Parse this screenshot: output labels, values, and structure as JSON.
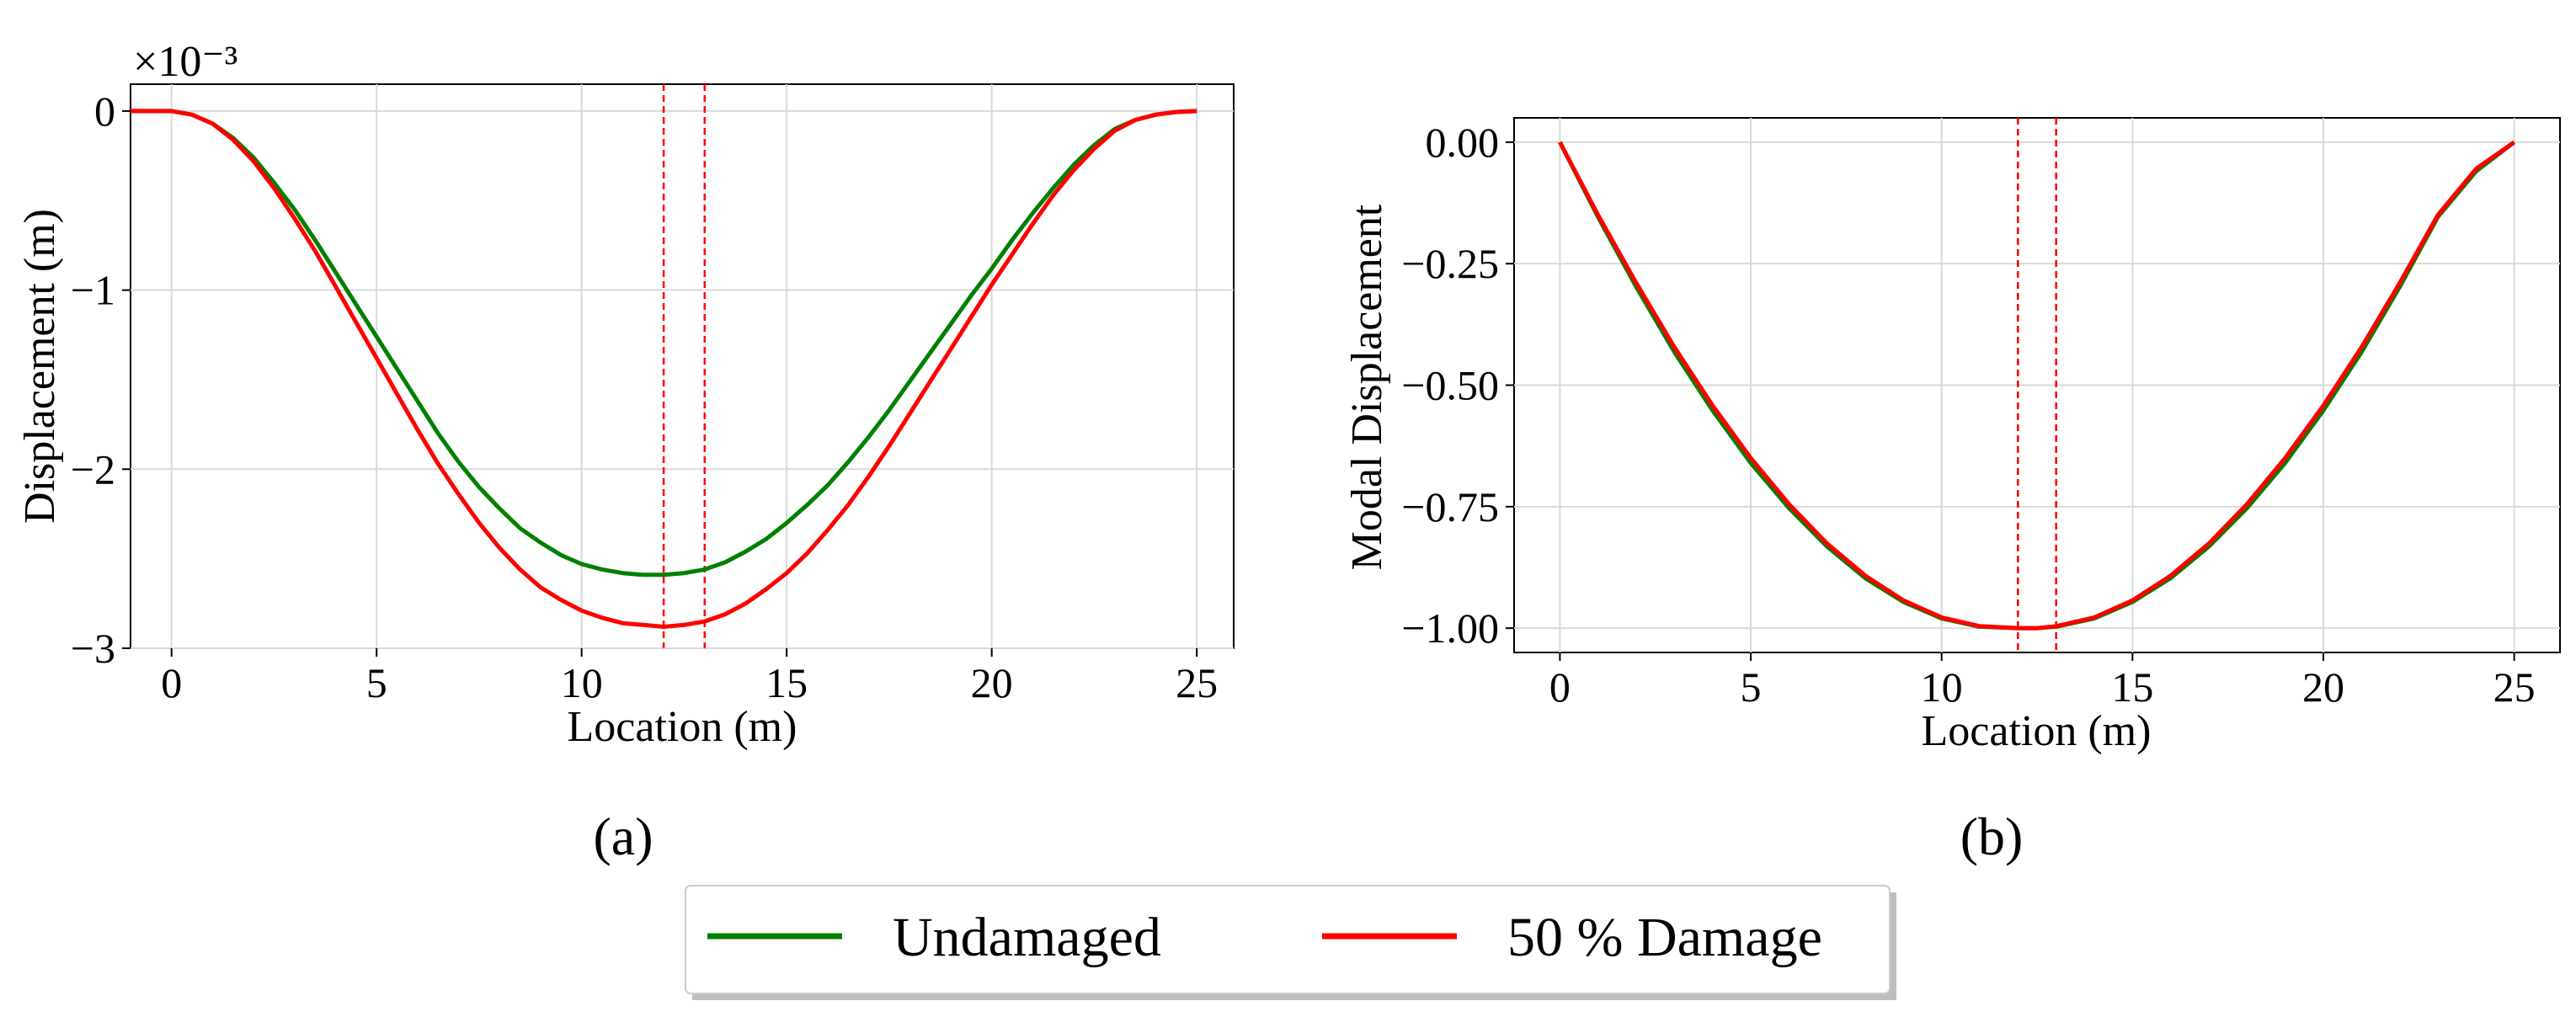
{
  "chart_data": [
    {
      "type": "line",
      "panel": "(a)",
      "xlabel": "Location (m)",
      "ylabel": "Displacement (m)",
      "offset_text": "×10⁻³",
      "xlim": [
        -1,
        25.9
      ],
      "ylim": [
        -3.0,
        0.15
      ],
      "xticks": [
        0,
        5,
        10,
        15,
        20,
        25
      ],
      "xtick_labels": [
        "0",
        "5",
        "10",
        "15",
        "20",
        "25"
      ],
      "yticks": [
        0,
        -1,
        -2,
        -3
      ],
      "ytick_labels": [
        "0",
        "−1",
        "−2",
        "−3"
      ],
      "grid": true,
      "damage_lines": [
        12.0,
        13.0
      ],
      "x": [
        -1,
        0,
        0.5,
        1,
        1.5,
        2,
        2.5,
        3,
        3.5,
        4,
        4.5,
        5,
        5.5,
        6,
        6.5,
        7,
        7.5,
        8,
        8.5,
        9,
        9.5,
        10,
        10.5,
        11,
        11.5,
        12,
        12.5,
        13,
        13.5,
        14,
        14.5,
        15,
        15.5,
        16,
        16.5,
        17,
        17.5,
        18,
        18.5,
        19,
        19.5,
        20,
        20.5,
        21,
        21.5,
        22,
        22.5,
        23,
        23.5,
        24,
        24.5,
        25
      ],
      "series": [
        {
          "name": "Undamaged",
          "color": "#008000",
          "values": [
            0,
            0,
            -0.02,
            -0.07,
            -0.15,
            -0.26,
            -0.4,
            -0.55,
            -0.72,
            -0.9,
            -1.08,
            -1.26,
            -1.44,
            -1.62,
            -1.8,
            -1.96,
            -2.1,
            -2.22,
            -2.33,
            -2.41,
            -2.48,
            -2.53,
            -2.56,
            -2.58,
            -2.59,
            -2.59,
            -2.58,
            -2.56,
            -2.52,
            -2.46,
            -2.39,
            -2.3,
            -2.2,
            -2.09,
            -1.96,
            -1.82,
            -1.67,
            -1.51,
            -1.35,
            -1.19,
            -1.03,
            -0.88,
            -0.72,
            -0.57,
            -0.43,
            -0.3,
            -0.19,
            -0.1,
            -0.05,
            -0.02,
            -0.005,
            0
          ]
        },
        {
          "name": "50 % Damage",
          "color": "#ff0000",
          "values": [
            0,
            0,
            -0.02,
            -0.07,
            -0.16,
            -0.28,
            -0.43,
            -0.6,
            -0.78,
            -0.98,
            -1.18,
            -1.38,
            -1.58,
            -1.78,
            -1.97,
            -2.14,
            -2.3,
            -2.44,
            -2.56,
            -2.66,
            -2.73,
            -2.79,
            -2.83,
            -2.86,
            -2.87,
            -2.88,
            -2.87,
            -2.85,
            -2.81,
            -2.75,
            -2.67,
            -2.58,
            -2.47,
            -2.34,
            -2.2,
            -2.04,
            -1.87,
            -1.69,
            -1.51,
            -1.33,
            -1.15,
            -0.97,
            -0.8,
            -0.63,
            -0.47,
            -0.33,
            -0.21,
            -0.11,
            -0.05,
            -0.02,
            -0.005,
            0
          ]
        }
      ]
    },
    {
      "type": "line",
      "panel": "(b)",
      "xlabel": "Location (m)",
      "ylabel": "Modal Displacement",
      "xlim": [
        -1.2,
        26.2
      ],
      "ylim": [
        -1.05,
        0.05
      ],
      "xticks": [
        0,
        5,
        10,
        15,
        20,
        25
      ],
      "xtick_labels": [
        "0",
        "5",
        "10",
        "15",
        "20",
        "25"
      ],
      "yticks": [
        0.0,
        -0.25,
        -0.5,
        -0.75,
        -1.0
      ],
      "ytick_labels": [
        "0.00",
        "−0.25",
        "−0.50",
        "−0.75",
        "−1.00"
      ],
      "grid": true,
      "damage_lines": [
        12.0,
        13.0
      ],
      "x": [
        0,
        1,
        2,
        3,
        4,
        5,
        6,
        7,
        8,
        9,
        10,
        11,
        12,
        12.5,
        13,
        14,
        15,
        16,
        17,
        18,
        19,
        20,
        21,
        22,
        23,
        24,
        25
      ],
      "series": [
        {
          "name": "Undamaged",
          "color": "#008000",
          "values": [
            0,
            -0.154,
            -0.298,
            -0.432,
            -0.552,
            -0.66,
            -0.753,
            -0.832,
            -0.897,
            -0.946,
            -0.98,
            -0.997,
            -1.0,
            -1.0,
            -0.997,
            -0.98,
            -0.946,
            -0.897,
            -0.832,
            -0.753,
            -0.66,
            -0.552,
            -0.432,
            -0.298,
            -0.154,
            -0.06,
            0
          ]
        },
        {
          "name": "50 % Damage",
          "color": "#ff0000",
          "values": [
            0,
            -0.15,
            -0.29,
            -0.422,
            -0.542,
            -0.65,
            -0.745,
            -0.826,
            -0.892,
            -0.943,
            -0.978,
            -0.996,
            -1.0,
            -1.0,
            -0.996,
            -0.978,
            -0.943,
            -0.892,
            -0.826,
            -0.745,
            -0.65,
            -0.542,
            -0.422,
            -0.29,
            -0.15,
            -0.055,
            0
          ]
        }
      ]
    }
  ],
  "legend": {
    "entries": [
      {
        "label": "Undamaged",
        "color": "#008000"
      },
      {
        "label": "50 % Damage",
        "color": "#ff0000"
      }
    ],
    "placement": "bottom-center"
  }
}
